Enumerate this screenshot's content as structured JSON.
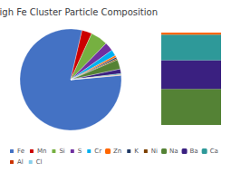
{
  "chart_data": [
    {
      "type": "pie",
      "title": "High Fe Cluster Particle Composition",
      "categories": [
        "Fe",
        "Mn",
        "Si",
        "S",
        "Cr",
        "Zn",
        "K",
        "Ni",
        "Na",
        "Ba",
        "Ca",
        "Al",
        "Cl"
      ],
      "values": [
        80.0,
        3.2,
        5.5,
        2.8,
        2.0,
        0.6,
        0.5,
        0.4,
        3.0,
        1.5,
        0.3,
        0.15,
        0.05
      ],
      "colors": [
        "#4472C4",
        "#CC0000",
        "#76B041",
        "#7030A0",
        "#00B0F0",
        "#FF6600",
        "#1F3864",
        "#7B3F00",
        "#548235",
        "#3A2080",
        "#2E9999",
        "#CC3300",
        "#87CEEB"
      ],
      "legend": "bottom"
    },
    {
      "type": "bar",
      "stacked": true,
      "series": [
        {
          "name": "Na",
          "color": "#548235",
          "values": [
            3.5
          ]
        },
        {
          "name": "Ba",
          "color": "#3A2080",
          "values": [
            2.8
          ]
        },
        {
          "name": "Ca",
          "color": "#2E9999",
          "values": [
            2.5
          ]
        },
        {
          "name": "Zn",
          "color": "#FF6600",
          "values": [
            0.2
          ]
        }
      ],
      "ylim": [
        0,
        9
      ],
      "tick_labels": false
    }
  ]
}
